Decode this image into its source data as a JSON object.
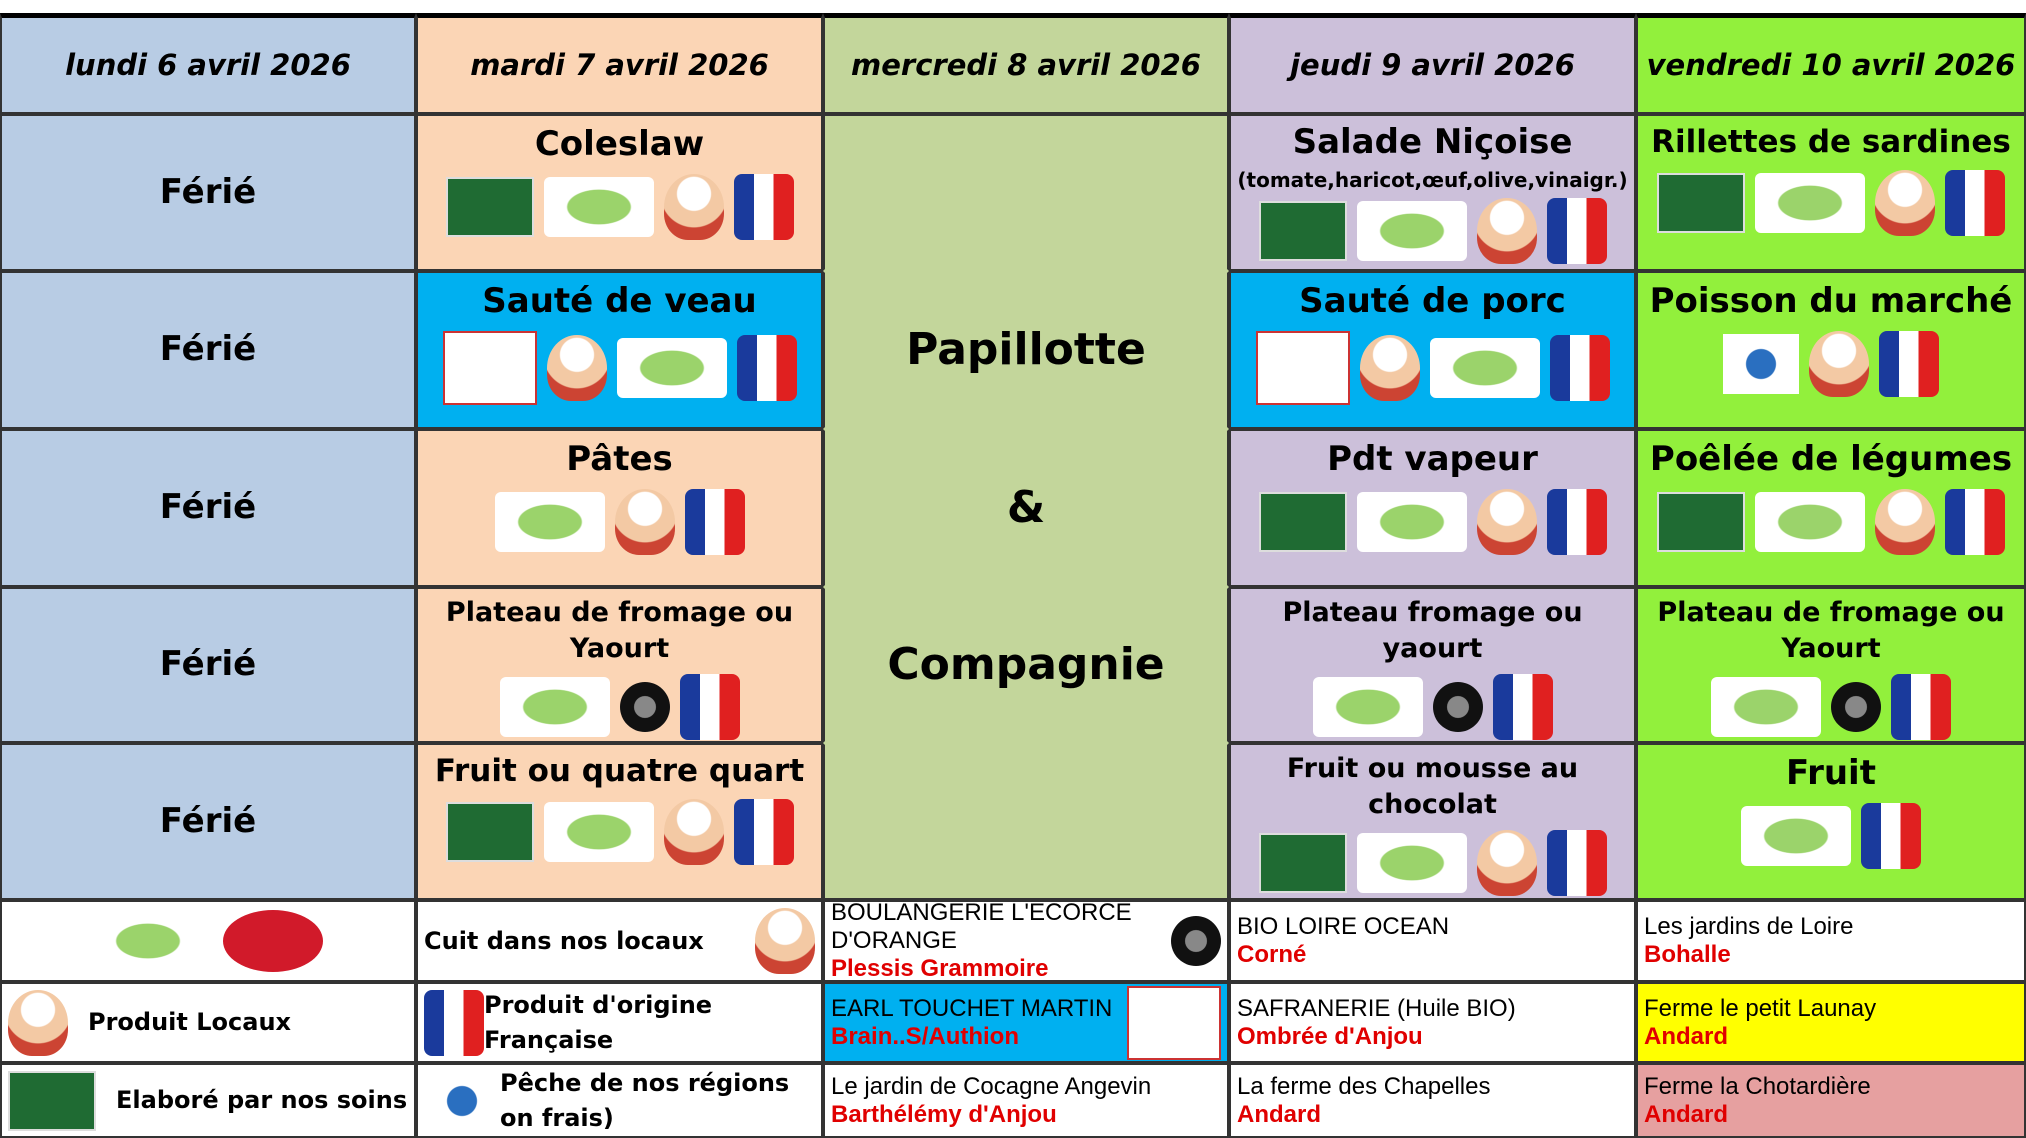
{
  "header": [
    "lundi 6 avril 2026",
    "mardi 7 avril 2026",
    "mercredi 8 avril 2026",
    "jeudi 9 avril 2026",
    "vendredi 10 avril 2026"
  ],
  "days": [
    {
      "items": [
        "Férié",
        "Férié",
        "Férié",
        "Férié",
        "Férié"
      ]
    },
    {
      "items": [
        "Coleslaw",
        "Sauté de veau",
        "Pâtes",
        "Plateau de fromage ou Yaourt",
        "Fruit ou quatre quart"
      ]
    },
    {
      "items": [
        null,
        "Papillotte",
        "&",
        "Compagnie",
        null
      ]
    },
    {
      "items": [
        {
          "title": "Salade Niçoise",
          "note": "(tomate,haricot,œuf,olive,vinaigr.)"
        },
        "Sauté de porc",
        "Pdt vapeur",
        "Plateau fromage ou yaourt",
        "Fruit ou mousse au chocolat"
      ]
    },
    {
      "items": [
        "Rillettes de sardines",
        "Poisson du marché",
        "Poêlée de légumes",
        "Plateau de fromage ou Yaourt",
        "Fruit"
      ]
    }
  ],
  "legend": [
    [
      null,
      "Produit Locaux",
      "Elaboré par nos soins"
    ],
    [
      "Cuit dans nos locaux",
      "Produit d'origine Française",
      "Pêche de nos régions on frais)"
    ],
    [
      {
        "name": "BOULANGERIE L'ECORCE D'ORANGE",
        "place": "Plessis Grammoire"
      },
      {
        "name": "EARL TOUCHET MARTIN",
        "place": "Brain..S/Authion"
      },
      {
        "name": "Le jardin de Cocagne Angevin",
        "place": "Barthélémy d'Anjou"
      }
    ],
    [
      {
        "name": "BIO LOIRE OCEAN",
        "place": "Corné"
      },
      {
        "name": "SAFRANERIE (Huile BIO)",
        "place": "Ombrée d'Anjou"
      },
      {
        "name": "La ferme des Chapelles",
        "place": "Andard"
      }
    ],
    [
      {
        "name": "Les jardins de Loire",
        "place": "Bohalle"
      },
      {
        "name": "Ferme le petit Launay",
        "place": "Andard"
      },
      {
        "name": "Ferme la Chotardière",
        "place": "Andard"
      }
    ]
  ]
}
